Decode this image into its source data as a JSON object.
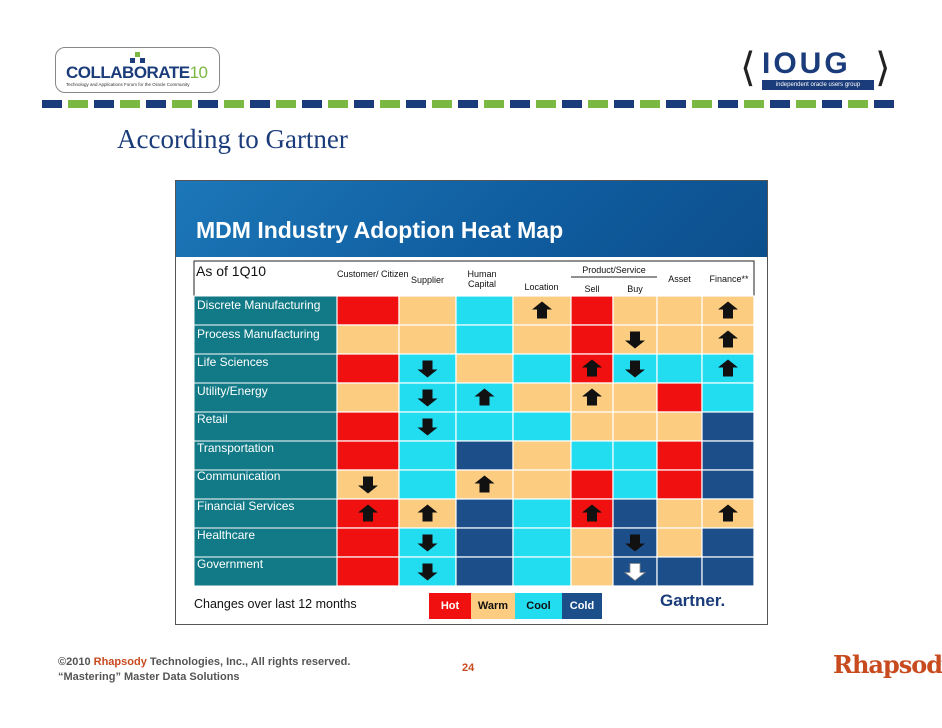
{
  "header": {
    "collaborate_logo": {
      "name": "COLLABORATE",
      "number": "10",
      "tagline": "Technology and Applications Forum for the Oracle Community"
    },
    "ioug_logo": {
      "name": "IOUG",
      "tagline": "independent oracle users group"
    },
    "stripe_colors": [
      "#1b3c7a",
      "#7ab842"
    ]
  },
  "slide": {
    "title": "According to Gartner"
  },
  "heatmap": {
    "title": "MDM Industry Adoption Heat Map",
    "as_of": "As of 1Q10",
    "columns": [
      {
        "label": "Customer/ Citizen"
      },
      {
        "label": "Supplier"
      },
      {
        "label": "Human Capital"
      },
      {
        "label": "Location"
      },
      {
        "label": "Sell",
        "group": "Product/Service"
      },
      {
        "label": "Buy",
        "group": "Product/Service"
      },
      {
        "label": "Asset"
      },
      {
        "label": "Finance**"
      }
    ],
    "product_group_label": "Product/Service",
    "rows": [
      "Discrete Manufacturing",
      "Process Manufacturing",
      "Life Sciences",
      "Utility/Energy",
      "Retail",
      "Transportation",
      "Communication",
      "Financial Services",
      "Healthcare",
      "Government"
    ],
    "cells": [
      [
        "hot",
        "warm",
        "cool",
        "warm",
        "hot",
        "warm",
        "warm",
        "warm"
      ],
      [
        "warm",
        "warm",
        "cool",
        "warm",
        "hot",
        "warm",
        "warm",
        "warm"
      ],
      [
        "hot",
        "cool",
        "warm",
        "cool",
        "hot",
        "cool",
        "cool",
        "cool"
      ],
      [
        "warm",
        "cool",
        "cool",
        "warm",
        "warm",
        "warm",
        "hot",
        "cool"
      ],
      [
        "hot",
        "cool",
        "cool",
        "cool",
        "warm",
        "warm",
        "warm",
        "cold"
      ],
      [
        "hot",
        "cool",
        "cold",
        "warm",
        "cool",
        "cool",
        "hot",
        "cold"
      ],
      [
        "warm",
        "cool",
        "warm",
        "warm",
        "hot",
        "cool",
        "hot",
        "cold"
      ],
      [
        "hot",
        "warm",
        "cold",
        "cool",
        "hot",
        "cold",
        "warm",
        "warm"
      ],
      [
        "hot",
        "cool",
        "cold",
        "cool",
        "warm",
        "cold",
        "warm",
        "cold"
      ],
      [
        "hot",
        "cool",
        "cold",
        "cool",
        "warm",
        "cold",
        "cold",
        "cold"
      ]
    ],
    "arrows": [
      [
        null,
        null,
        null,
        "up",
        null,
        null,
        null,
        "up"
      ],
      [
        null,
        null,
        null,
        null,
        null,
        "down",
        null,
        "up"
      ],
      [
        null,
        "down",
        null,
        null,
        "up",
        "down",
        null,
        "up"
      ],
      [
        null,
        "down",
        "up",
        null,
        "up",
        null,
        null,
        null
      ],
      [
        null,
        "down",
        null,
        null,
        null,
        null,
        null,
        null
      ],
      [
        null,
        null,
        null,
        null,
        null,
        null,
        null,
        null
      ],
      [
        "down",
        null,
        "up",
        null,
        null,
        null,
        null,
        null
      ],
      [
        "up",
        "up",
        null,
        null,
        "up",
        null,
        null,
        "up"
      ],
      [
        null,
        "down",
        null,
        null,
        null,
        "down",
        null,
        null
      ],
      [
        null,
        "down",
        null,
        null,
        null,
        "down-white",
        null,
        null
      ]
    ],
    "colors": {
      "hot": "#f01010",
      "warm": "#fccc80",
      "cool": "#22dcf0",
      "cold": "#1c4f8a",
      "row_label_bg": "#117a86"
    },
    "footer_note": "Changes over last 12 months",
    "legend": [
      {
        "key": "hot",
        "label": "Hot"
      },
      {
        "key": "warm",
        "label": "Warm"
      },
      {
        "key": "cool",
        "label": "Cool"
      },
      {
        "key": "cold",
        "label": "Cold"
      }
    ],
    "source": "Gartner."
  },
  "footer": {
    "copyright_prefix": "©2010 ",
    "brand": "Rhapsody",
    "copyright_suffix": " Technologies, Inc., All rights reserved.",
    "subtitle": "“Mastering” Master Data Solutions",
    "page_number": "24",
    "rhapsody_logo": "Rhapsody"
  }
}
